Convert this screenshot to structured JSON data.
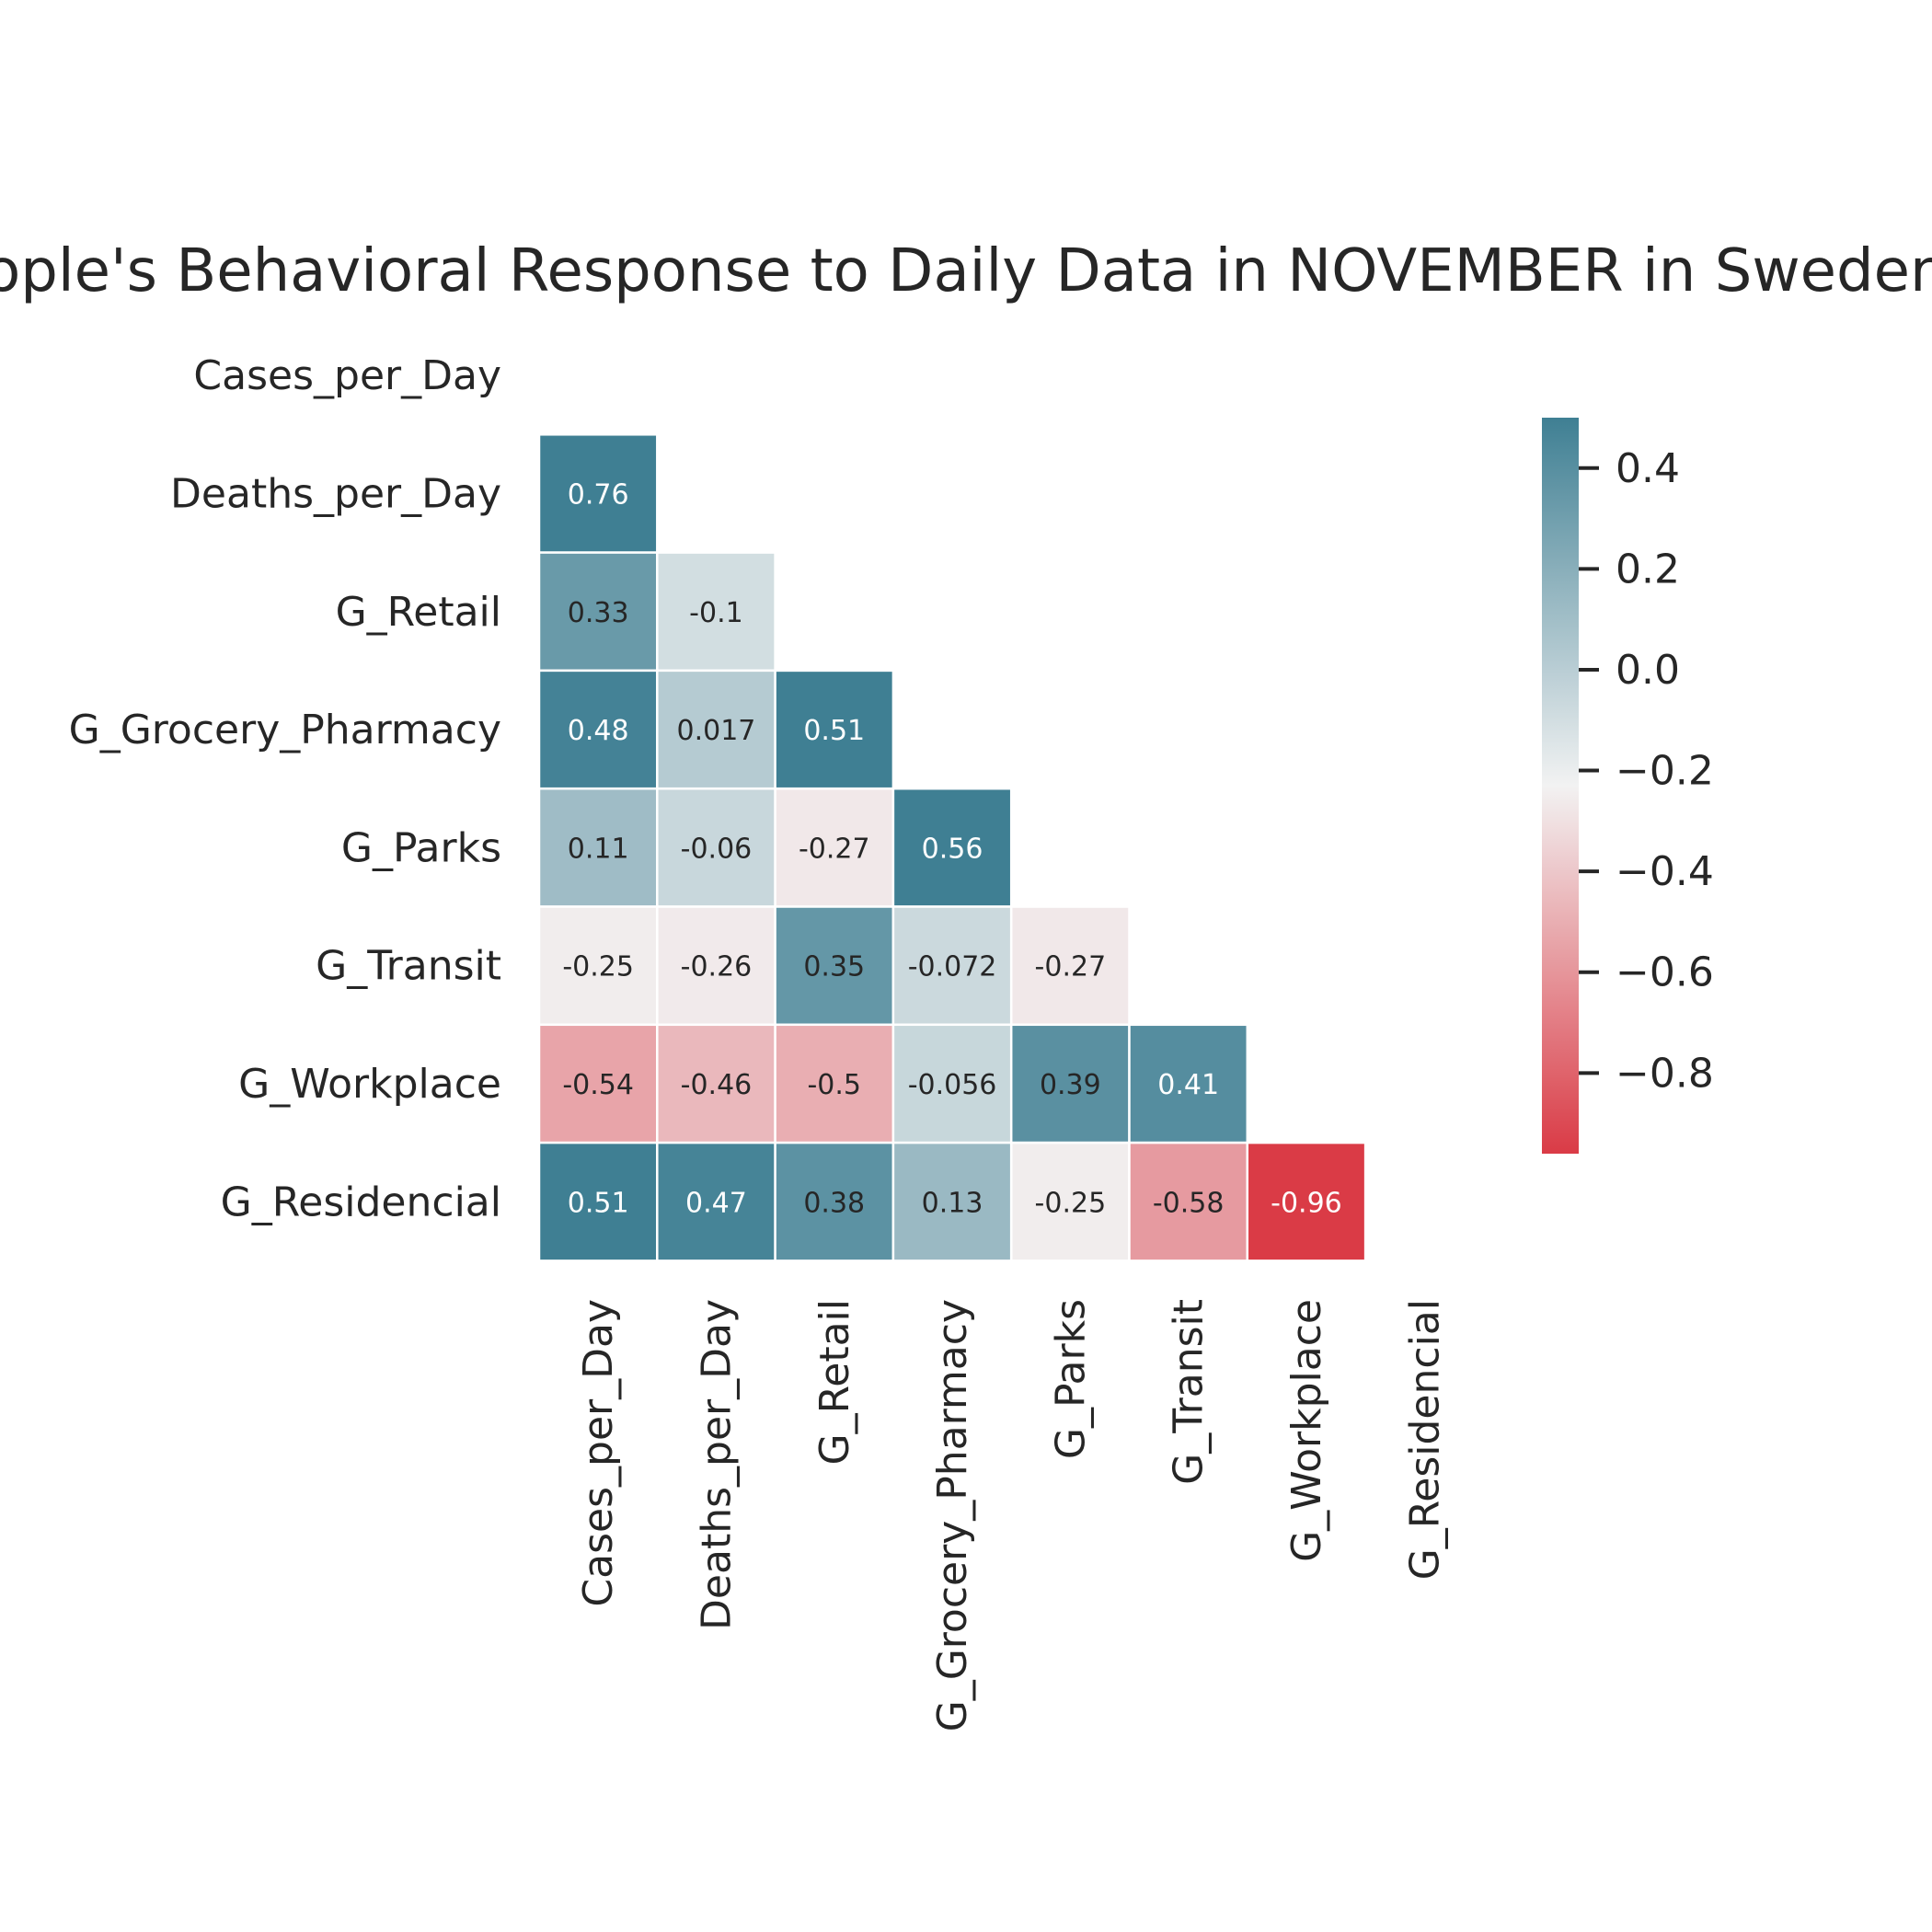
{
  "chart_data": {
    "type": "heatmap",
    "title": "People's Behavioral Response to Daily Data in NOVEMBER in Sweden",
    "row_labels": [
      "Cases_per_Day",
      "Deaths_per_Day",
      "G_Retail",
      "G_Grocery_Pharmacy",
      "G_Parks",
      "G_Transit",
      "G_Workplace",
      "G_Residencial"
    ],
    "col_labels": [
      "Cases_per_Day",
      "Deaths_per_Day",
      "G_Retail",
      "G_Grocery_Pharmacy",
      "G_Parks",
      "G_Transit",
      "G_Workplace",
      "G_Residencial"
    ],
    "matrix": [
      [
        null,
        null,
        null,
        null,
        null,
        null,
        null,
        null
      ],
      [
        0.76,
        null,
        null,
        null,
        null,
        null,
        null,
        null
      ],
      [
        0.33,
        -0.1,
        null,
        null,
        null,
        null,
        null,
        null
      ],
      [
        0.48,
        0.017,
        0.51,
        null,
        null,
        null,
        null,
        null
      ],
      [
        0.11,
        -0.06,
        -0.27,
        0.56,
        null,
        null,
        null,
        null
      ],
      [
        -0.25,
        -0.26,
        0.35,
        -0.072,
        -0.27,
        null,
        null,
        null
      ],
      [
        -0.54,
        -0.46,
        -0.5,
        -0.056,
        0.39,
        0.41,
        null,
        null
      ],
      [
        0.51,
        0.47,
        0.38,
        0.13,
        -0.25,
        -0.58,
        -0.96,
        null
      ]
    ],
    "cell_labels": [
      [
        null,
        null,
        null,
        null,
        null,
        null,
        null,
        null
      ],
      [
        "0.76",
        null,
        null,
        null,
        null,
        null,
        null,
        null
      ],
      [
        "0.33",
        "-0.1",
        null,
        null,
        null,
        null,
        null,
        null
      ],
      [
        "0.48",
        "0.017",
        "0.51",
        null,
        null,
        null,
        null,
        null
      ],
      [
        "0.11",
        "-0.06",
        "-0.27",
        "0.56",
        null,
        null,
        null,
        null
      ],
      [
        "-0.25",
        "-0.26",
        "0.35",
        "-0.072",
        "-0.27",
        null,
        null,
        null
      ],
      [
        "-0.54",
        "-0.46",
        "-0.5",
        "-0.056",
        "0.39",
        "0.41",
        null,
        null
      ],
      [
        "0.51",
        "0.47",
        "0.38",
        "0.13",
        "-0.25",
        "-0.58",
        "-0.96",
        null
      ]
    ],
    "mask": "upper-triangle-including-diagonal",
    "colorbar": {
      "vmin": -0.96,
      "vmax": 0.5,
      "center": -0.23,
      "ticks": [
        0.4,
        0.2,
        0.0,
        -0.2,
        -0.4,
        -0.6,
        -0.8
      ],
      "tick_labels": [
        "0.4",
        "0.2",
        "0.0",
        "−0.2",
        "−0.4",
        "−0.6",
        "−0.8"
      ],
      "low_color": "#da3b46",
      "mid_color": "#f2f2f2",
      "high_color": "#3f7f93"
    },
    "grid": false
  }
}
